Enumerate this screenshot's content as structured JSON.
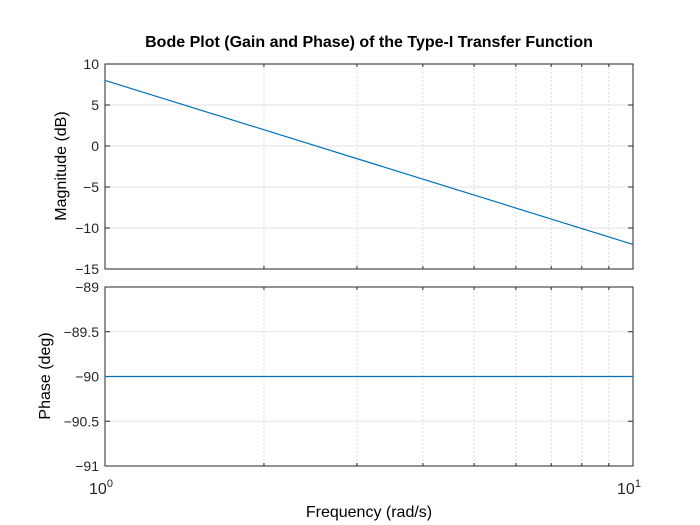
{
  "chart_data": [
    {
      "type": "line",
      "title": "Bode Plot (Gain and Phase) of the Type-I Transfer Function",
      "xlabel": "",
      "ylabel": "Magnitude  (dB)",
      "xscale": "log",
      "xlim": [
        1,
        10
      ],
      "ylim": [
        -15,
        10
      ],
      "yticks": [
        10,
        5,
        0,
        -5,
        -10,
        -15
      ],
      "grid": true,
      "line_color": "#0072BD",
      "series": [
        {
          "x": [
            1,
            10
          ],
          "y": [
            8,
            -12
          ]
        }
      ]
    },
    {
      "type": "line",
      "title": "",
      "xlabel": "Frequency  (rad/s)",
      "ylabel": "Phase (deg)",
      "xscale": "log",
      "xlim": [
        1,
        10
      ],
      "ylim": [
        -91,
        -89
      ],
      "yticks": [
        -89,
        -89.5,
        -90,
        -90.5,
        -91
      ],
      "xticks": [
        {
          "value": 1,
          "base": "10",
          "exp": "0"
        },
        {
          "value": 10,
          "base": "10",
          "exp": "1"
        }
      ],
      "grid": true,
      "line_color": "#0072BD",
      "series": [
        {
          "x": [
            1,
            10
          ],
          "y": [
            -90,
            -90
          ]
        }
      ]
    }
  ]
}
